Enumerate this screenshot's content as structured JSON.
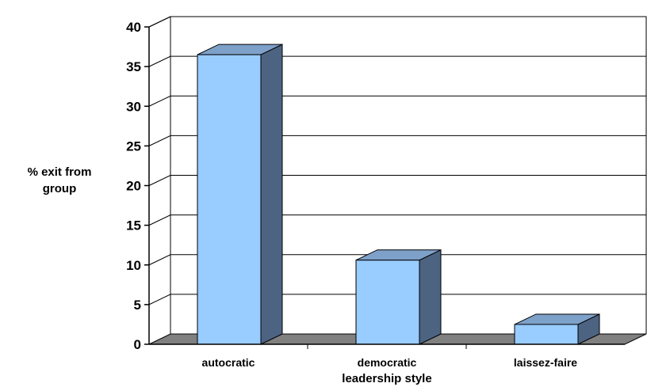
{
  "chart_data": {
    "type": "bar",
    "style": "3d-column",
    "categories": [
      "autocratic",
      "democratic",
      "laissez-faire"
    ],
    "values": [
      36.5,
      10.6,
      2.5
    ],
    "title": "",
    "xlabel": "leadership style",
    "ylabel_lines": [
      "% exit from",
      "group"
    ],
    "ylim": [
      0,
      40
    ],
    "yticks": [
      "0",
      "5",
      "10",
      "15",
      "20",
      "25",
      "30",
      "35",
      "40"
    ],
    "grid": true,
    "legend": "none",
    "colors": {
      "bar_front": "#99CCFF",
      "bar_side": "#4D6382",
      "bar_top": "#7EA1C9",
      "floor": "#808080",
      "grid": "#000000"
    }
  }
}
